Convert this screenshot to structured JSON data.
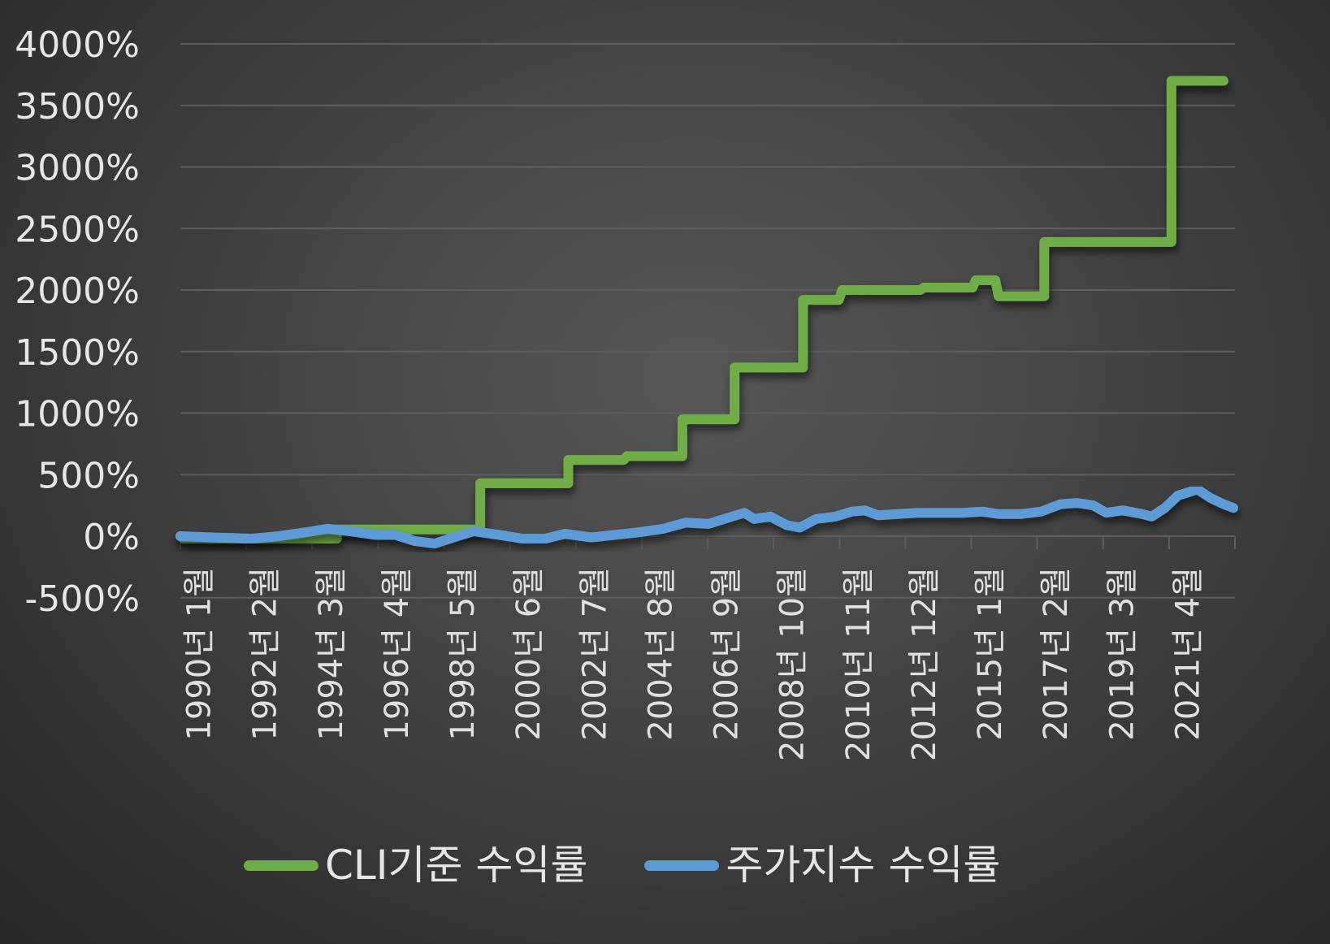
{
  "chart_data": {
    "type": "line",
    "title": "",
    "xlabel": "",
    "ylabel": "",
    "ylim": [
      -500,
      4000
    ],
    "yticks": [
      "4000%",
      "3500%",
      "3000%",
      "2500%",
      "2000%",
      "1500%",
      "1000%",
      "500%",
      "0%",
      "-500%"
    ],
    "grid": true,
    "legend_position": "bottom",
    "categories": [
      "1990년 1월",
      "1992년 2월",
      "1994년 3월",
      "1996년 4월",
      "1998년 5월",
      "2000년 6월",
      "2002년 7월",
      "2004년 8월",
      "2006년 9월",
      "2008년 10월",
      "2010년 11월",
      "2012년 12월",
      "2015년 1월",
      "2017년 2월",
      "2019년 3월",
      "2021년 4월"
    ],
    "series": [
      {
        "name": "CLI기준 수익률",
        "color": "#70ad47",
        "step": true,
        "points": [
          [
            "1990.0",
            0
          ],
          [
            "1990.1",
            -20
          ],
          [
            "1994.8",
            -20
          ],
          [
            "1994.8",
            55
          ],
          [
            "1999.2",
            55
          ],
          [
            "1999.2",
            430
          ],
          [
            "2001.9",
            430
          ],
          [
            "2001.9",
            620
          ],
          [
            "2003.6",
            620
          ],
          [
            "2003.7",
            650
          ],
          [
            "2005.4",
            650
          ],
          [
            "2005.4",
            950
          ],
          [
            "2007.0",
            950
          ],
          [
            "2007.0",
            1370
          ],
          [
            "2009.1",
            1370
          ],
          [
            "2009.1",
            1920
          ],
          [
            "2010.2",
            1920
          ],
          [
            "2010.3",
            2000
          ],
          [
            "2012.7",
            2000
          ],
          [
            "2012.8",
            2020
          ],
          [
            "2014.3",
            2020
          ],
          [
            "2014.4",
            2080
          ],
          [
            "2015.0",
            2080
          ],
          [
            "2015.1",
            1950
          ],
          [
            "2016.5",
            1950
          ],
          [
            "2016.5",
            2390
          ],
          [
            "2020.4",
            2390
          ],
          [
            "2020.4",
            3700
          ],
          [
            "2022.0",
            3700
          ]
        ]
      },
      {
        "name": "주가지수 수익률",
        "color": "#5b9bd5",
        "step": false,
        "points": [
          [
            "1990.0",
            0
          ],
          [
            "1991.0",
            -10
          ],
          [
            "1992.2",
            -20
          ],
          [
            "1993.0",
            0
          ],
          [
            "1993.8",
            30
          ],
          [
            "1994.5",
            60
          ],
          [
            "1995.2",
            40
          ],
          [
            "1996.0",
            10
          ],
          [
            "1996.6",
            10
          ],
          [
            "1997.2",
            -40
          ],
          [
            "1997.8",
            -60
          ],
          [
            "1998.5",
            0
          ],
          [
            "1999.0",
            40
          ],
          [
            "1999.8",
            10
          ],
          [
            "2000.5",
            -20
          ],
          [
            "2001.2",
            -20
          ],
          [
            "2001.8",
            20
          ],
          [
            "2002.6",
            -10
          ],
          [
            "2003.3",
            10
          ],
          [
            "2004.0",
            30
          ],
          [
            "2004.8",
            60
          ],
          [
            "2005.5",
            110
          ],
          [
            "2006.2",
            100
          ],
          [
            "2006.8",
            150
          ],
          [
            "2007.3",
            190
          ],
          [
            "2007.6",
            140
          ],
          [
            "2008.1",
            160
          ],
          [
            "2008.6",
            90
          ],
          [
            "2009.0",
            70
          ],
          [
            "2009.5",
            140
          ],
          [
            "2010.1",
            160
          ],
          [
            "2010.6",
            200
          ],
          [
            "2011.0",
            210
          ],
          [
            "2011.4",
            170
          ],
          [
            "2012.0",
            180
          ],
          [
            "2012.6",
            190
          ],
          [
            "2013.3",
            190
          ],
          [
            "2014.0",
            190
          ],
          [
            "2014.6",
            200
          ],
          [
            "2015.1",
            180
          ],
          [
            "2015.8",
            180
          ],
          [
            "2016.4",
            200
          ],
          [
            "2017.0",
            260
          ],
          [
            "2017.5",
            270
          ],
          [
            "2018.0",
            250
          ],
          [
            "2018.4",
            190
          ],
          [
            "2018.9",
            210
          ],
          [
            "2019.5",
            180
          ],
          [
            "2019.8",
            160
          ],
          [
            "2020.2",
            230
          ],
          [
            "2020.6",
            330
          ],
          [
            "2021.2",
            380
          ],
          [
            "2021.6",
            310
          ],
          [
            "2022.0",
            260
          ],
          [
            "2022.3",
            230
          ]
        ]
      }
    ]
  },
  "legend": {
    "items": [
      {
        "label": "CLI기준 수익률",
        "color": "#70ad47"
      },
      {
        "label": "주가지수 수익률",
        "color": "#5b9bd5"
      }
    ]
  },
  "colors": {
    "gridline": "#5e5e5e",
    "axis_text": "#e6e6e6"
  }
}
